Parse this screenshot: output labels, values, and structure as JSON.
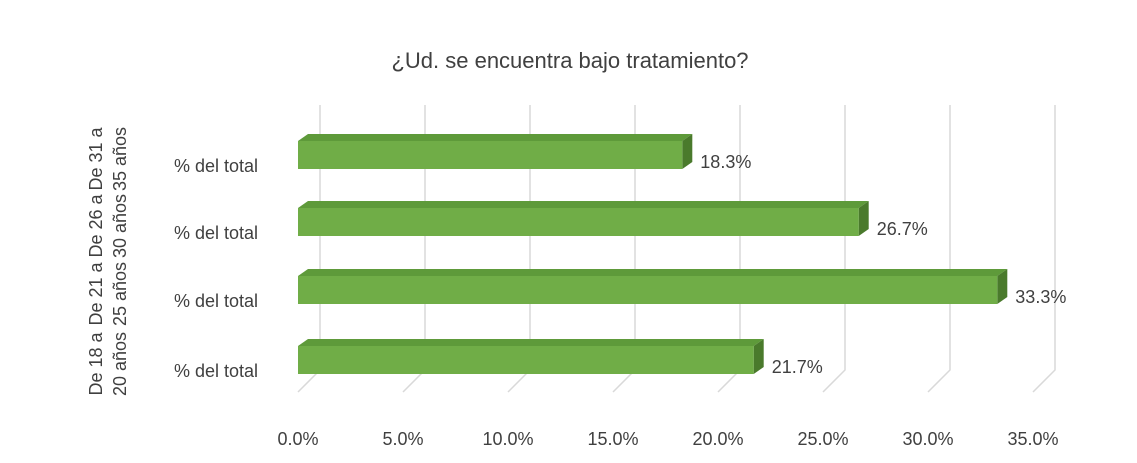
{
  "chart_data": {
    "type": "bar",
    "orientation": "horizontal",
    "title": "¿Ud. se encuentra bajo tratamiento?",
    "groups": [
      "De 31 a 35 años",
      "De 26 a 30 años",
      "De 21 a 25 años",
      "De 18 a 20 años"
    ],
    "categories": [
      "% del total",
      "% del total",
      "% del total",
      "% del total"
    ],
    "values": [
      18.3,
      26.7,
      33.3,
      21.7
    ],
    "value_labels": [
      "18.3%",
      "26.7%",
      "33.3%",
      "21.7%"
    ],
    "color": "#70ad47",
    "xlim": [
      0,
      35
    ],
    "xticks": [
      {
        "value": 0,
        "label": "0.0%"
      },
      {
        "value": 5,
        "label": "5.0%"
      },
      {
        "value": 10,
        "label": "10.0%"
      },
      {
        "value": 15,
        "label": "15.0%"
      },
      {
        "value": 20,
        "label": "20.0%"
      },
      {
        "value": 25,
        "label": "25.0%"
      },
      {
        "value": 30,
        "label": "30.0%"
      },
      {
        "value": 35,
        "label": "35.0%"
      }
    ],
    "grid": true
  }
}
